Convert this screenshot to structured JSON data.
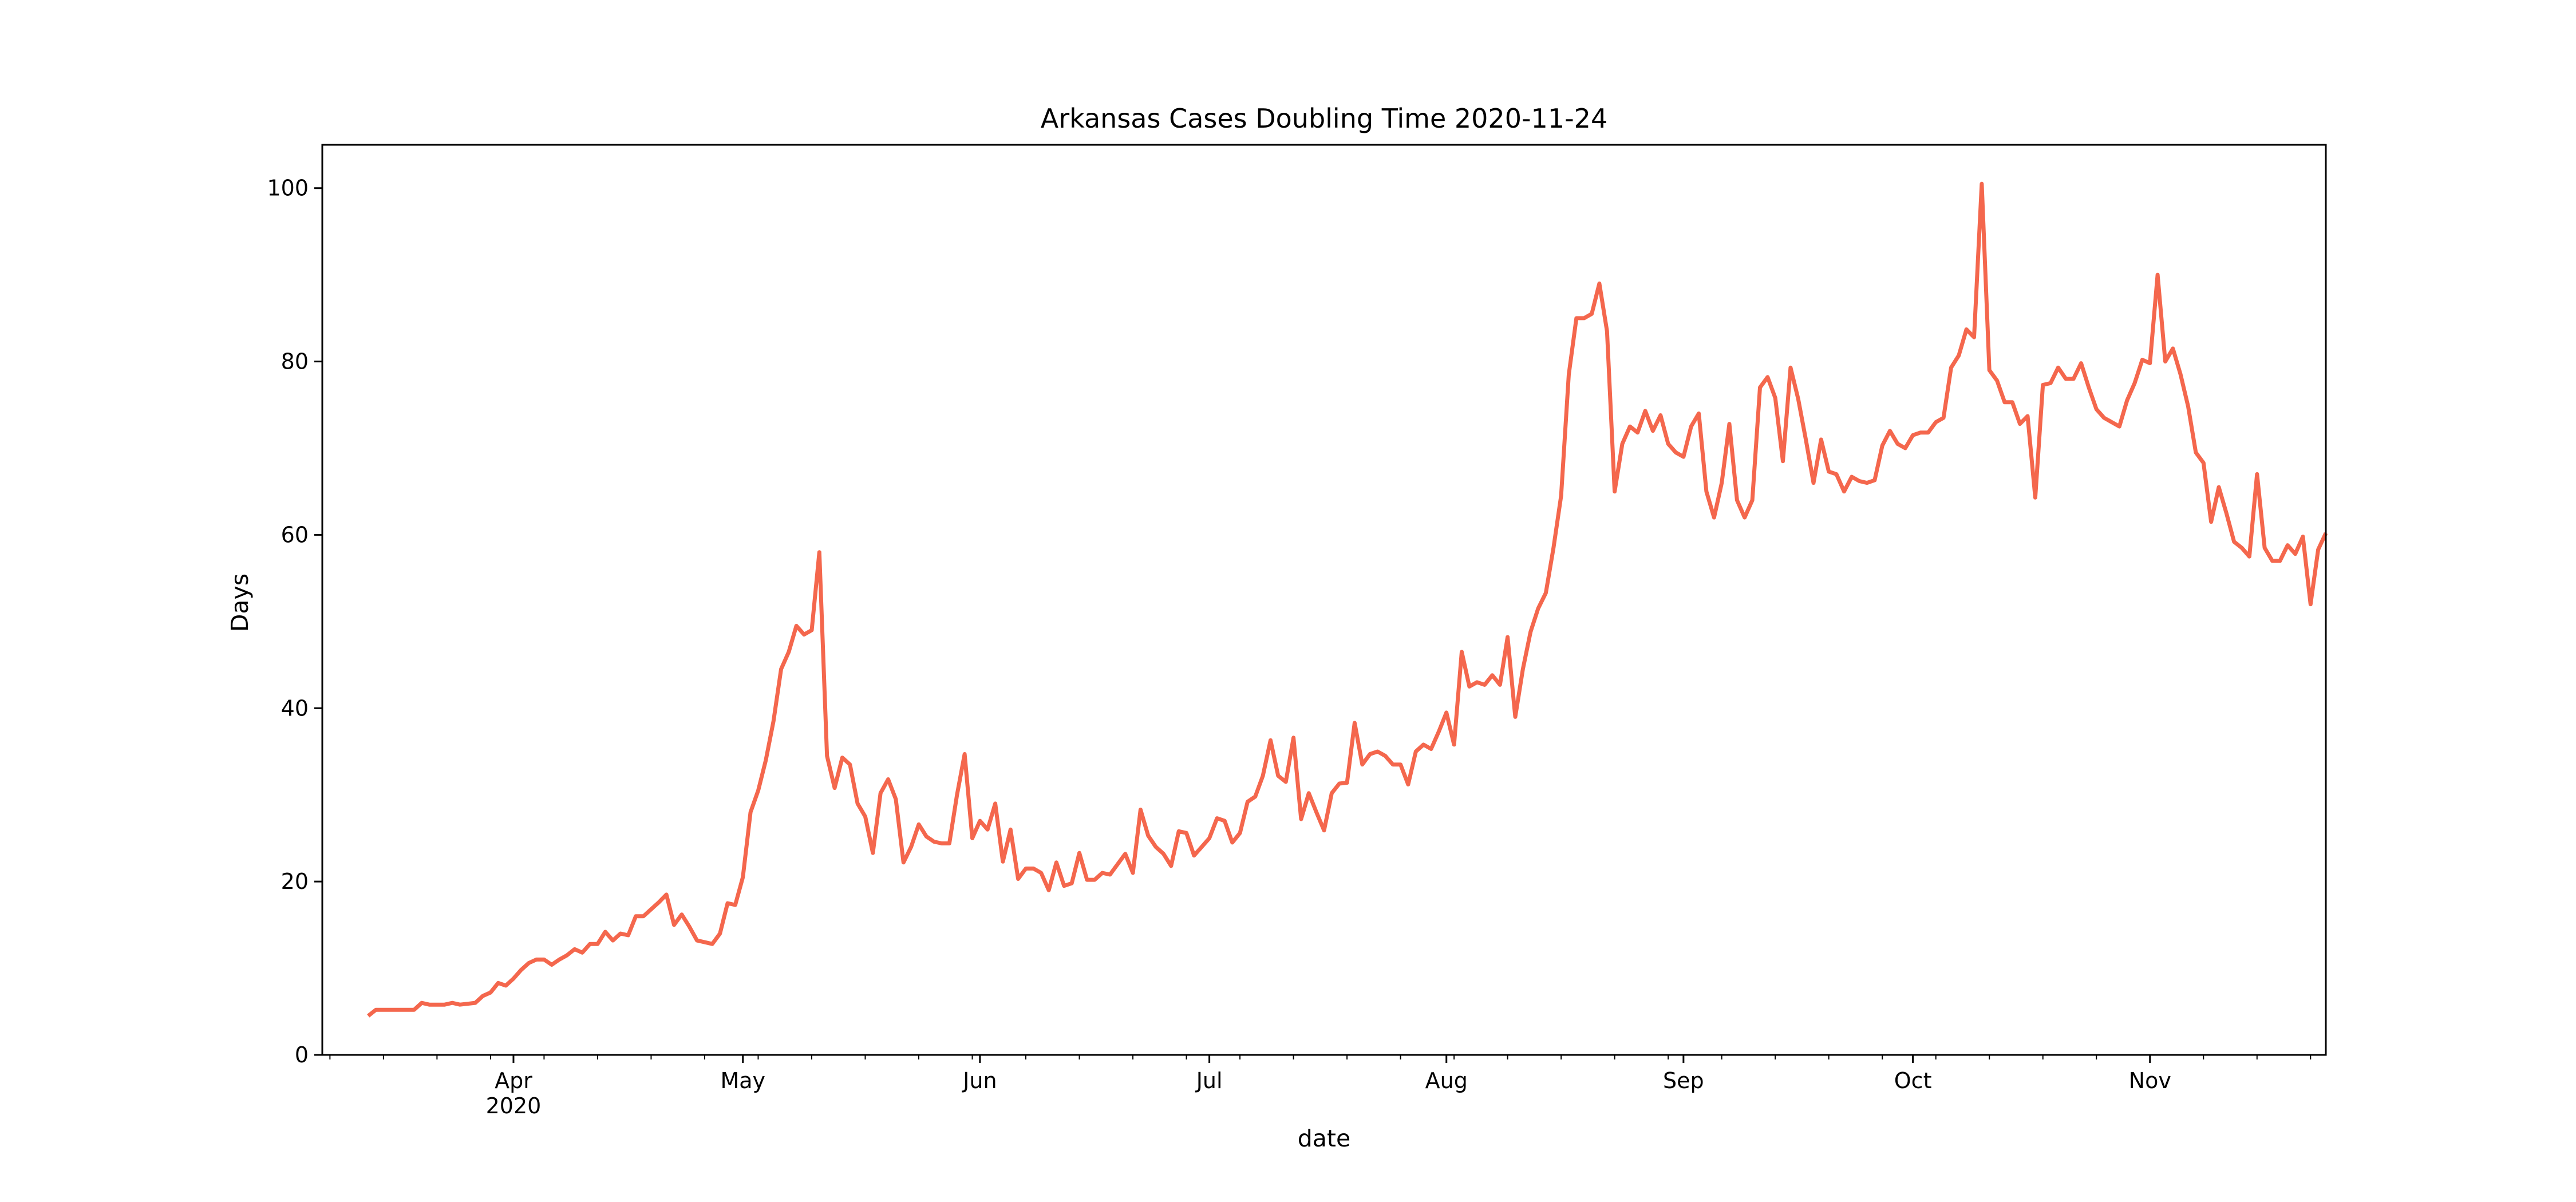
{
  "chart_data": {
    "type": "line",
    "title": "Arkansas Cases Doubling Time 2020-11-24",
    "xlabel": "date",
    "ylabel": "Days",
    "x_range": [
      "2020-03-07",
      "2020-11-24"
    ],
    "ylim": [
      0,
      105
    ],
    "grid": false,
    "x_ticks": [
      {
        "date": "2020-04-01",
        "label": "Apr",
        "sublabel": "2020"
      },
      {
        "date": "2020-05-01",
        "label": "May"
      },
      {
        "date": "2020-06-01",
        "label": "Jun"
      },
      {
        "date": "2020-07-01",
        "label": "Jul"
      },
      {
        "date": "2020-08-01",
        "label": "Aug"
      },
      {
        "date": "2020-09-01",
        "label": "Sep"
      },
      {
        "date": "2020-10-01",
        "label": "Oct"
      },
      {
        "date": "2020-11-01",
        "label": "Nov"
      }
    ],
    "y_ticks": [
      0,
      20,
      40,
      60,
      80,
      100
    ],
    "series": [
      {
        "color": "#f4674d",
        "start_date": "2020-03-13",
        "values": [
          4.5,
          5.2,
          5.2,
          5.2,
          5.2,
          5.2,
          5.2,
          6.0,
          5.8,
          5.8,
          5.8,
          6.0,
          5.8,
          5.9,
          6.0,
          6.8,
          7.2,
          8.3,
          8.0,
          8.8,
          9.8,
          10.6,
          11.0,
          11.0,
          10.4,
          11.0,
          11.5,
          12.2,
          11.8,
          12.8,
          12.8,
          14.2,
          13.2,
          14.0,
          13.8,
          16.0,
          16.0,
          16.8,
          17.6,
          18.5,
          15.0,
          16.2,
          14.8,
          13.2,
          13.0,
          12.8,
          14.0,
          17.5,
          17.3,
          20.5,
          28.0,
          30.5,
          34.0,
          38.5,
          44.5,
          46.5,
          49.5,
          48.5,
          49.0,
          58.0,
          34.5,
          30.8,
          34.3,
          33.5,
          29.0,
          27.5,
          23.3,
          30.2,
          31.8,
          29.5,
          22.2,
          24.0,
          26.6,
          25.2,
          24.6,
          24.4,
          24.4,
          30.0,
          34.7,
          25.0,
          27.0,
          26.0,
          29.0,
          22.3,
          26.0,
          20.3,
          21.5,
          21.5,
          21.0,
          19.0,
          22.2,
          19.5,
          19.8,
          23.3,
          20.2,
          20.2,
          21.0,
          20.8,
          22.0,
          23.2,
          21.0,
          28.3,
          25.3,
          24.0,
          23.2,
          21.8,
          25.8,
          25.6,
          23.0,
          24.0,
          25.0,
          27.3,
          27.0,
          24.5,
          25.6,
          29.2,
          29.8,
          32.2,
          36.3,
          32.2,
          31.5,
          36.6,
          27.2,
          30.2,
          28.0,
          25.9,
          30.2,
          31.3,
          31.4,
          38.3,
          33.5,
          34.7,
          35.0,
          34.5,
          33.5,
          33.5,
          31.2,
          35.0,
          35.8,
          35.3,
          37.3,
          39.5,
          35.8,
          46.5,
          42.5,
          43.0,
          42.7,
          43.8,
          42.7,
          48.2,
          39.0,
          44.5,
          48.8,
          51.5,
          53.3,
          58.5,
          64.5,
          78.5,
          85.0,
          85.0,
          85.5,
          89.0,
          83.5,
          65.0,
          70.5,
          72.5,
          71.8,
          74.3,
          72.0,
          73.8,
          70.5,
          69.5,
          69.0,
          72.5,
          74.0,
          65.0,
          62.0,
          66.0,
          72.8,
          64.0,
          62.0,
          64.0,
          77.0,
          78.2,
          75.8,
          68.5,
          79.3,
          75.7,
          71.0,
          66.0,
          71.0,
          67.3,
          67.0,
          65.0,
          66.7,
          66.2,
          66.0,
          66.3,
          70.3,
          72.0,
          70.5,
          70.0,
          71.5,
          71.8,
          71.8,
          73.0,
          73.5,
          79.3,
          80.7,
          83.7,
          82.8,
          100.5,
          79.0,
          77.8,
          75.3,
          75.3,
          72.8,
          73.7,
          64.3,
          77.3,
          77.5,
          79.3,
          78.0,
          78.0,
          79.8,
          77.0,
          74.5,
          73.5,
          73.0,
          72.5,
          75.5,
          77.5,
          80.2,
          79.8,
          90.0,
          80.0,
          81.5,
          78.5,
          74.8,
          69.5,
          68.3,
          61.5,
          65.5,
          62.5,
          59.2,
          58.5,
          57.5,
          67.0,
          58.5,
          57.0,
          57.0,
          58.8,
          57.8,
          59.8,
          52.0,
          58.3,
          60.2
        ]
      }
    ]
  }
}
